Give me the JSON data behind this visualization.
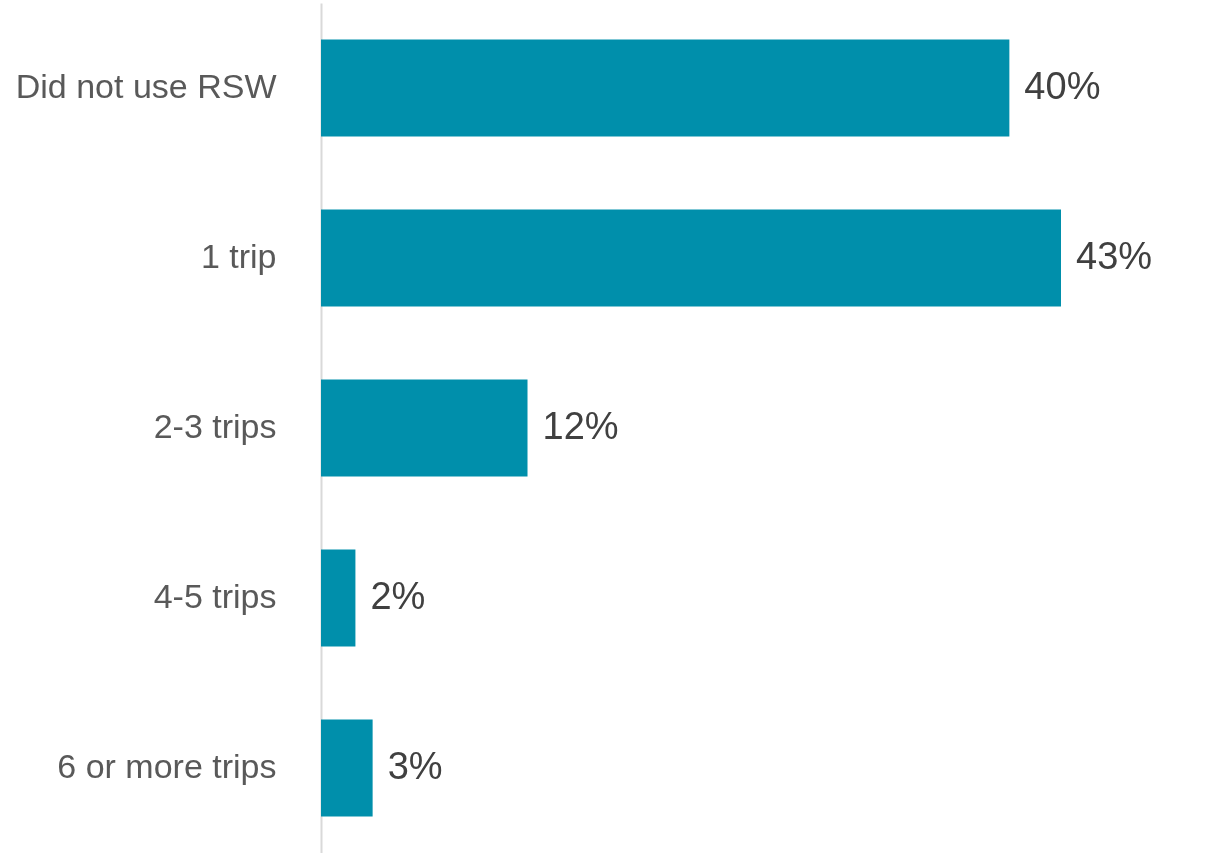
{
  "chart_data": {
    "type": "bar",
    "orientation": "horizontal",
    "categories": [
      "Did not use RSW",
      "1 trip",
      "2-3 trips",
      "4-5 trips",
      "6 or more trips"
    ],
    "values": [
      40,
      43,
      12,
      2,
      3
    ],
    "value_labels": [
      "40%",
      "43%",
      "12%",
      "2%",
      "3%"
    ],
    "color": "#008fab",
    "grid": false
  }
}
